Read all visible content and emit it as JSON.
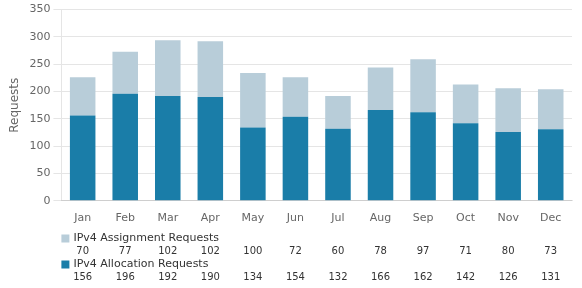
{
  "chart_data": {
    "type": "bar",
    "stacked": true,
    "categories": [
      "Jan",
      "Feb",
      "Mar",
      "Apr",
      "May",
      "Jun",
      "Jul",
      "Aug",
      "Sep",
      "Oct",
      "Nov",
      "Dec"
    ],
    "series": [
      {
        "name": "IPv4 Allocation Requests",
        "color": "#1a7da8",
        "values": [
          156,
          196,
          192,
          190,
          134,
          154,
          132,
          166,
          162,
          142,
          126,
          131
        ]
      },
      {
        "name": "IPv4 Assignment Requests",
        "color": "#b8cdd9",
        "values": [
          70,
          77,
          102,
          102,
          100,
          72,
          60,
          78,
          97,
          71,
          80,
          73
        ]
      }
    ],
    "ylabel": "Requests",
    "ylim": [
      0,
      350
    ],
    "yticks": [
      0,
      50,
      100,
      150,
      200,
      250,
      300,
      350
    ],
    "grid": true,
    "data_labels": true
  }
}
